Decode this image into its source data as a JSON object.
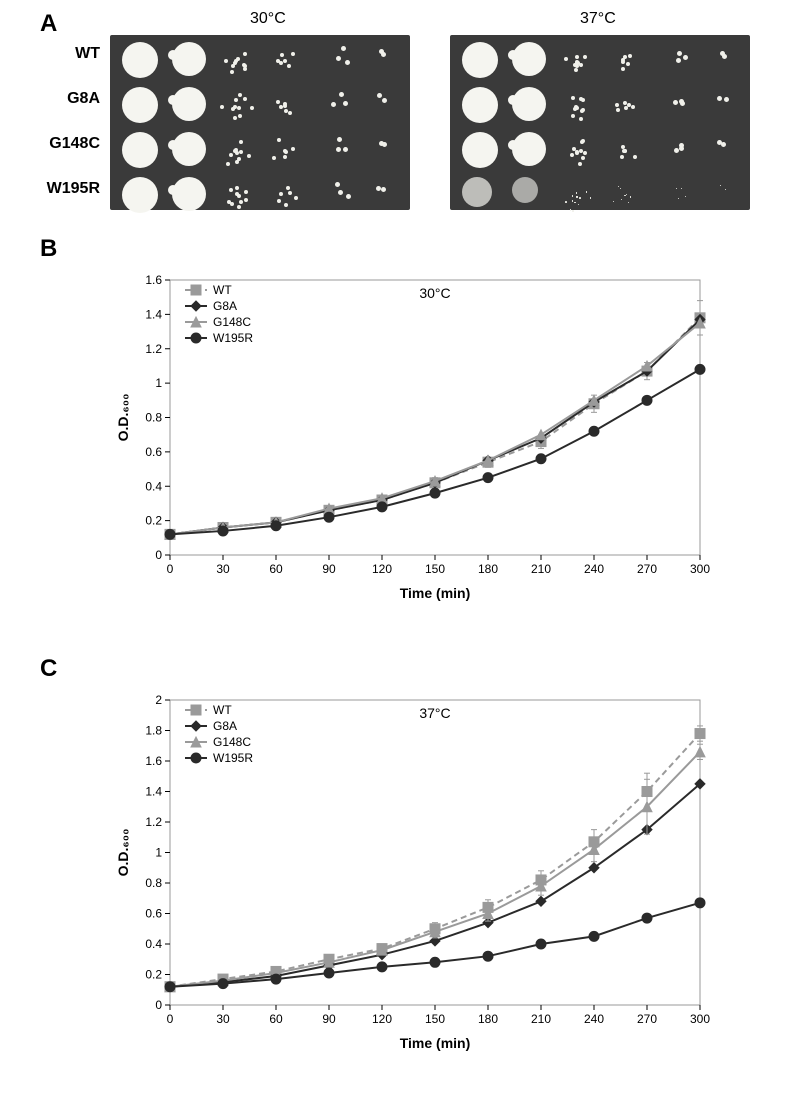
{
  "panelA": {
    "label": "A",
    "temp_left": "30°C",
    "temp_right": "37°C",
    "rows": [
      "WT",
      "G8A",
      "G148C",
      "W195R"
    ],
    "plate_bg": "#3a3a3a",
    "spot_color": "#f5f5f0"
  },
  "panelB": {
    "label": "B",
    "title": "30°C",
    "xlabel": "Time (min)",
    "ylabel": "O.D.₆₀₀",
    "xlim": [
      0,
      300
    ],
    "ylim": [
      0,
      1.6
    ],
    "xticks": [
      0,
      30,
      60,
      90,
      120,
      150,
      180,
      210,
      240,
      270,
      300
    ],
    "yticks": [
      0,
      0.2,
      0.4,
      0.6,
      0.8,
      1,
      1.2,
      1.4,
      1.6
    ],
    "axis_color": "#000000",
    "grid_color": "#e0e0e0",
    "tick_fontsize": 12,
    "label_fontsize": 14,
    "series": {
      "WT": {
        "color": "#9a9a9a",
        "marker": "square",
        "dash": "6,4",
        "values": [
          0.12,
          0.16,
          0.19,
          0.26,
          0.32,
          0.42,
          0.54,
          0.66,
          0.88,
          1.07,
          1.38
        ]
      },
      "G8A": {
        "color": "#2a2a2a",
        "marker": "diamond",
        "dash": "",
        "values": [
          0.12,
          0.16,
          0.19,
          0.26,
          0.32,
          0.42,
          0.55,
          0.68,
          0.89,
          1.07,
          1.37
        ]
      },
      "G148C": {
        "color": "#9a9a9a",
        "marker": "triangle",
        "dash": "",
        "values": [
          0.12,
          0.16,
          0.19,
          0.27,
          0.33,
          0.43,
          0.55,
          0.7,
          0.9,
          1.1,
          1.35
        ]
      },
      "W195R": {
        "color": "#2a2a2a",
        "marker": "circle",
        "dash": "",
        "values": [
          0.12,
          0.14,
          0.17,
          0.22,
          0.28,
          0.36,
          0.45,
          0.56,
          0.72,
          0.9,
          1.08
        ]
      }
    },
    "error_bars": {
      "WT": [
        0.01,
        0.01,
        0.01,
        0.02,
        0.02,
        0.03,
        0.03,
        0.04,
        0.05,
        0.05,
        0.1
      ]
    },
    "legend_pos": "top-left"
  },
  "panelC": {
    "label": "C",
    "title": "37°C",
    "xlabel": "Time (min)",
    "ylabel": "O.D.₆₀₀",
    "xlim": [
      0,
      300
    ],
    "ylim": [
      0,
      2
    ],
    "xticks": [
      0,
      30,
      60,
      90,
      120,
      150,
      180,
      210,
      240,
      270,
      300
    ],
    "yticks": [
      0,
      0.2,
      0.4,
      0.6,
      0.8,
      1,
      1.2,
      1.4,
      1.6,
      1.8,
      2
    ],
    "axis_color": "#000000",
    "grid_color": "#e0e0e0",
    "tick_fontsize": 12,
    "label_fontsize": 14,
    "series": {
      "WT": {
        "color": "#9a9a9a",
        "marker": "square",
        "dash": "6,4",
        "values": [
          0.12,
          0.17,
          0.22,
          0.3,
          0.37,
          0.5,
          0.64,
          0.82,
          1.07,
          1.4,
          1.78
        ]
      },
      "G8A": {
        "color": "#2a2a2a",
        "marker": "diamond",
        "dash": "",
        "values": [
          0.12,
          0.15,
          0.19,
          0.26,
          0.33,
          0.42,
          0.54,
          0.68,
          0.9,
          1.15,
          1.45
        ]
      },
      "G148C": {
        "color": "#9a9a9a",
        "marker": "triangle",
        "dash": "",
        "values": [
          0.12,
          0.16,
          0.21,
          0.28,
          0.36,
          0.48,
          0.6,
          0.78,
          1.02,
          1.3,
          1.66
        ]
      },
      "W195R": {
        "color": "#2a2a2a",
        "marker": "circle",
        "dash": "",
        "values": [
          0.12,
          0.14,
          0.17,
          0.21,
          0.25,
          0.28,
          0.32,
          0.4,
          0.45,
          0.57,
          0.67
        ]
      }
    },
    "error_bars": {
      "WT": [
        0.01,
        0.01,
        0.02,
        0.03,
        0.03,
        0.04,
        0.05,
        0.06,
        0.08,
        0.12,
        0.05
      ],
      "G148C": [
        0.01,
        0.01,
        0.02,
        0.03,
        0.03,
        0.04,
        0.05,
        0.06,
        0.08,
        0.18,
        0.05
      ]
    },
    "legend_pos": "top-left"
  },
  "legend_order": [
    "WT",
    "G8A",
    "G148C",
    "W195R"
  ]
}
